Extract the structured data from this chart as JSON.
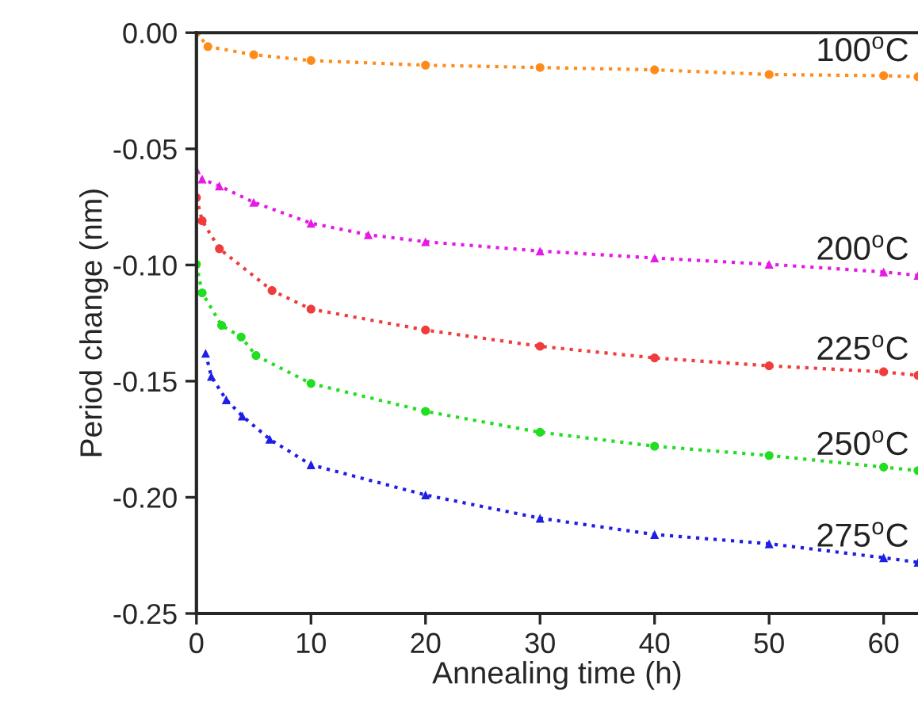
{
  "chart_data": {
    "type": "line",
    "xlabel": "Annealing time (h)",
    "ylabel": "Period change (nm)",
    "xlim": [
      0,
      63
    ],
    "xticks": [
      0,
      10,
      20,
      30,
      40,
      50,
      60
    ],
    "ylim": [
      -0.25,
      0.0
    ],
    "yticks": [
      {
        "value": -0.25,
        "label": "-0.25"
      },
      {
        "value": -0.2,
        "label": "-0.20"
      },
      {
        "value": -0.15,
        "label": "-0.15"
      },
      {
        "value": -0.1,
        "label": "-0.10"
      },
      {
        "value": -0.05,
        "label": "-0.05"
      },
      {
        "value": 0.0,
        "label": "0.00"
      }
    ],
    "grid": false,
    "legend": false,
    "line_style": "dotted",
    "series": [
      {
        "name": "100$^{o}$C",
        "color": "#ff8c1a",
        "marker": "circle",
        "x": [
          0,
          1,
          5,
          10,
          20,
          30,
          40,
          50,
          60,
          63
        ],
        "values": [
          0.0,
          -0.006,
          -0.0095,
          -0.012,
          -0.014,
          -0.015,
          -0.016,
          -0.018,
          -0.0185,
          -0.019
        ]
      },
      {
        "name": "200$^{o}$C",
        "color": "#e619e6",
        "marker": "triangle",
        "x": [
          0,
          0.5,
          2,
          5,
          10,
          15,
          20,
          30,
          40,
          50,
          60,
          63
        ],
        "values": [
          -0.059,
          -0.063,
          -0.066,
          -0.073,
          -0.082,
          -0.087,
          -0.09,
          -0.094,
          -0.097,
          -0.0997,
          -0.103,
          -0.1045
        ]
      },
      {
        "name": "225$^{o}$C",
        "color": "#f03c3c",
        "marker": "circle",
        "x": [
          0,
          0.5,
          2,
          6.6,
          10,
          20,
          30,
          40,
          50,
          60,
          63
        ],
        "values": [
          -0.071,
          -0.081,
          -0.093,
          -0.111,
          -0.119,
          -0.128,
          -0.135,
          -0.14,
          -0.1434,
          -0.146,
          -0.1475
        ]
      },
      {
        "name": "250$^{o}$C",
        "color": "#22dd22",
        "marker": "circle",
        "x": [
          0,
          0.5,
          2.2,
          3.9,
          5.2,
          10,
          20,
          30,
          40,
          50,
          60,
          63
        ],
        "values": [
          -0.0997,
          -0.112,
          -0.126,
          -0.131,
          -0.139,
          -0.151,
          -0.163,
          -0.172,
          -0.178,
          -0.182,
          -0.187,
          -0.1885
        ]
      },
      {
        "name": "275$^{o}$C",
        "color": "#1e1ee6",
        "marker": "triangle",
        "x": [
          0.8,
          1.3,
          2.6,
          4,
          6.4,
          10,
          20,
          30,
          40,
          50,
          60,
          63
        ],
        "values": [
          -0.138,
          -0.148,
          -0.158,
          -0.165,
          -0.175,
          -0.186,
          -0.199,
          -0.209,
          -0.216,
          -0.22,
          -0.226,
          -0.228
        ]
      }
    ]
  }
}
